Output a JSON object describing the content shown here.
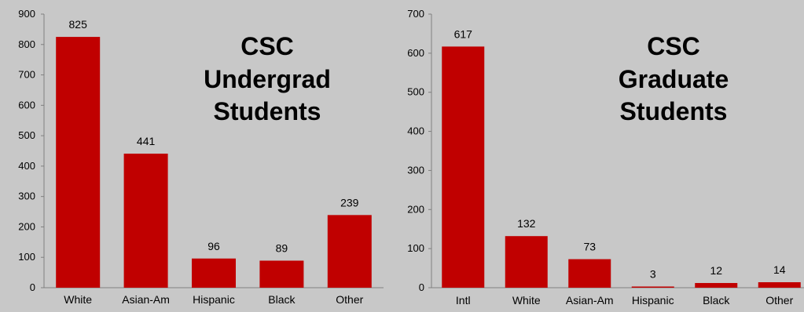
{
  "chart_data": [
    {
      "type": "bar",
      "title_lines": [
        "CSC",
        "Undergrad",
        "Students"
      ],
      "categories": [
        "White",
        "Asian-Am",
        "Hispanic",
        "Black",
        "Other"
      ],
      "values": [
        825,
        441,
        96,
        89,
        239
      ],
      "yticks": [
        0,
        100,
        200,
        300,
        400,
        500,
        600,
        700,
        800,
        900
      ],
      "ylim": [
        0,
        900
      ],
      "grid": false,
      "legend": "none",
      "bar_color": "#c00000"
    },
    {
      "type": "bar",
      "title_lines": [
        "CSC",
        "Graduate",
        "Students"
      ],
      "categories": [
        "Intl",
        "White",
        "Asian-Am",
        "Hispanic",
        "Black",
        "Other"
      ],
      "values": [
        617,
        132,
        73,
        3,
        12,
        14
      ],
      "yticks": [
        0,
        100,
        200,
        300,
        400,
        500,
        600,
        700
      ],
      "ylim": [
        0,
        700
      ],
      "grid": false,
      "legend": "none",
      "bar_color": "#c00000"
    }
  ]
}
